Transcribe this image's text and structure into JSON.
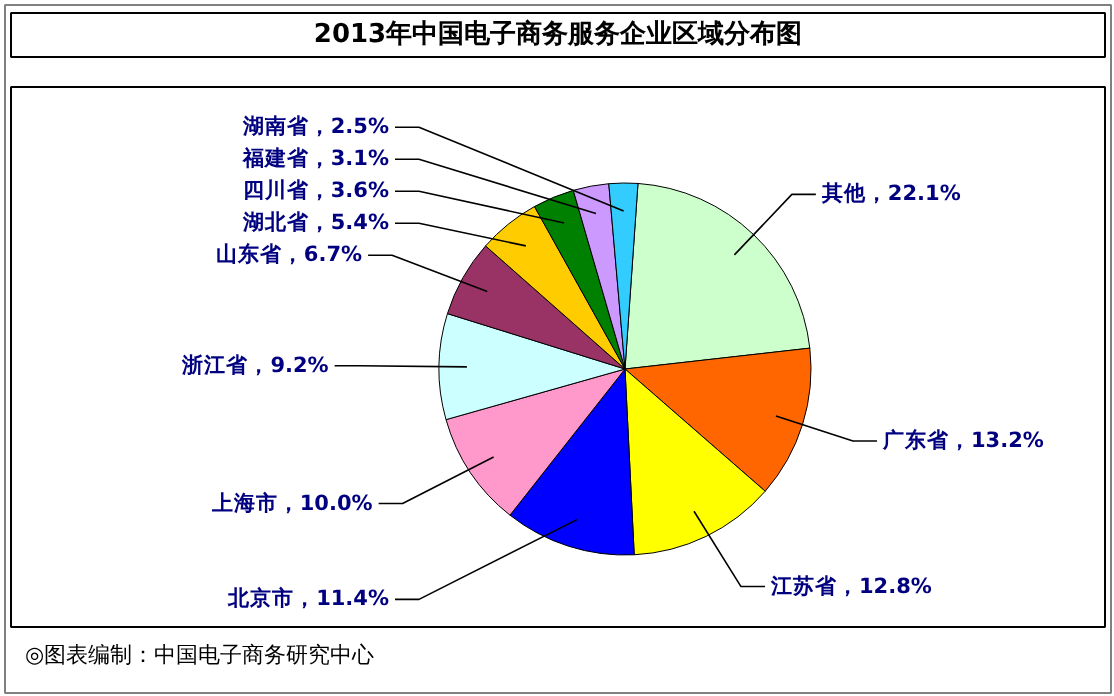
{
  "chart_data": {
    "type": "pie",
    "title": "2013年中国电子商务服务企业区域分布图",
    "categories": [
      "其他",
      "广东省",
      "江苏省",
      "北京市",
      "上海市",
      "浙江省",
      "山东省",
      "湖北省",
      "四川省",
      "福建省",
      "湖南省"
    ],
    "values": [
      22.1,
      13.2,
      12.8,
      11.4,
      10.0,
      9.2,
      6.7,
      5.4,
      3.6,
      3.1,
      2.5
    ],
    "colors": [
      "#ccffcc",
      "#ff6600",
      "#ffff00",
      "#0000ff",
      "#ff99cc",
      "#ccffff",
      "#993366",
      "#ffcc00",
      "#008000",
      "#cc99ff",
      "#33ccff"
    ],
    "value_labels": [
      "22.1%",
      "13.2%",
      "12.8%",
      "11.4%",
      "10.0%",
      "9.2%",
      "6.7%",
      "5.4%",
      "3.6%",
      "3.1%",
      "2.5%"
    ],
    "annotations": [
      "◎图表编制：中国电子商务研究中心"
    ]
  }
}
